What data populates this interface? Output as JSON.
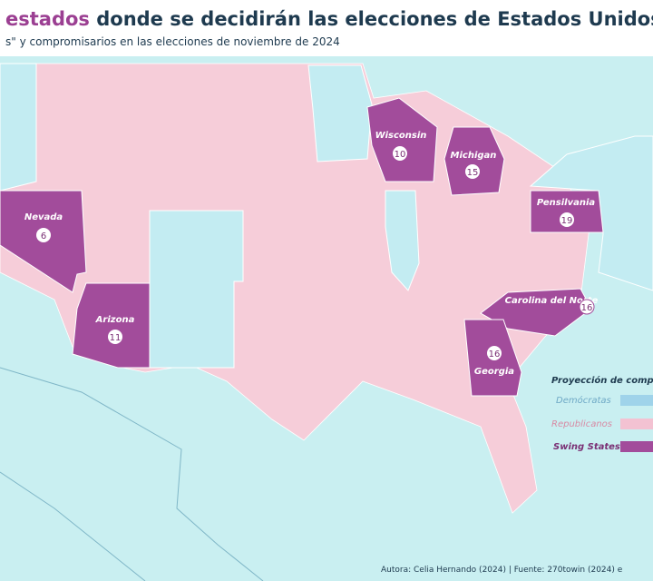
{
  "header": {
    "title_highlight": "estados",
    "title_rest": " donde se decidirán las elecciones de Estados Unidos",
    "subtitle": "s\" y compromisarios en las elecciones de noviembre de 2024"
  },
  "states": [
    {
      "name": "Nevada",
      "votes": "6"
    },
    {
      "name": "Arizona",
      "votes": "11"
    },
    {
      "name": "Wisconsin",
      "votes": "10"
    },
    {
      "name": "Michigan",
      "votes": "15"
    },
    {
      "name": "Pensilvania",
      "votes": "19"
    },
    {
      "name": "Carolina del Norte",
      "votes": "16"
    },
    {
      "name": "Georgia",
      "votes": "16"
    }
  ],
  "legend": {
    "title": "Proyección de compr",
    "items": [
      "Demócratas",
      "Republicanos",
      "Swing States"
    ]
  },
  "footer": "Autora: Celia Hernando (2024) | Fuente: 270towin (2024) e"
}
